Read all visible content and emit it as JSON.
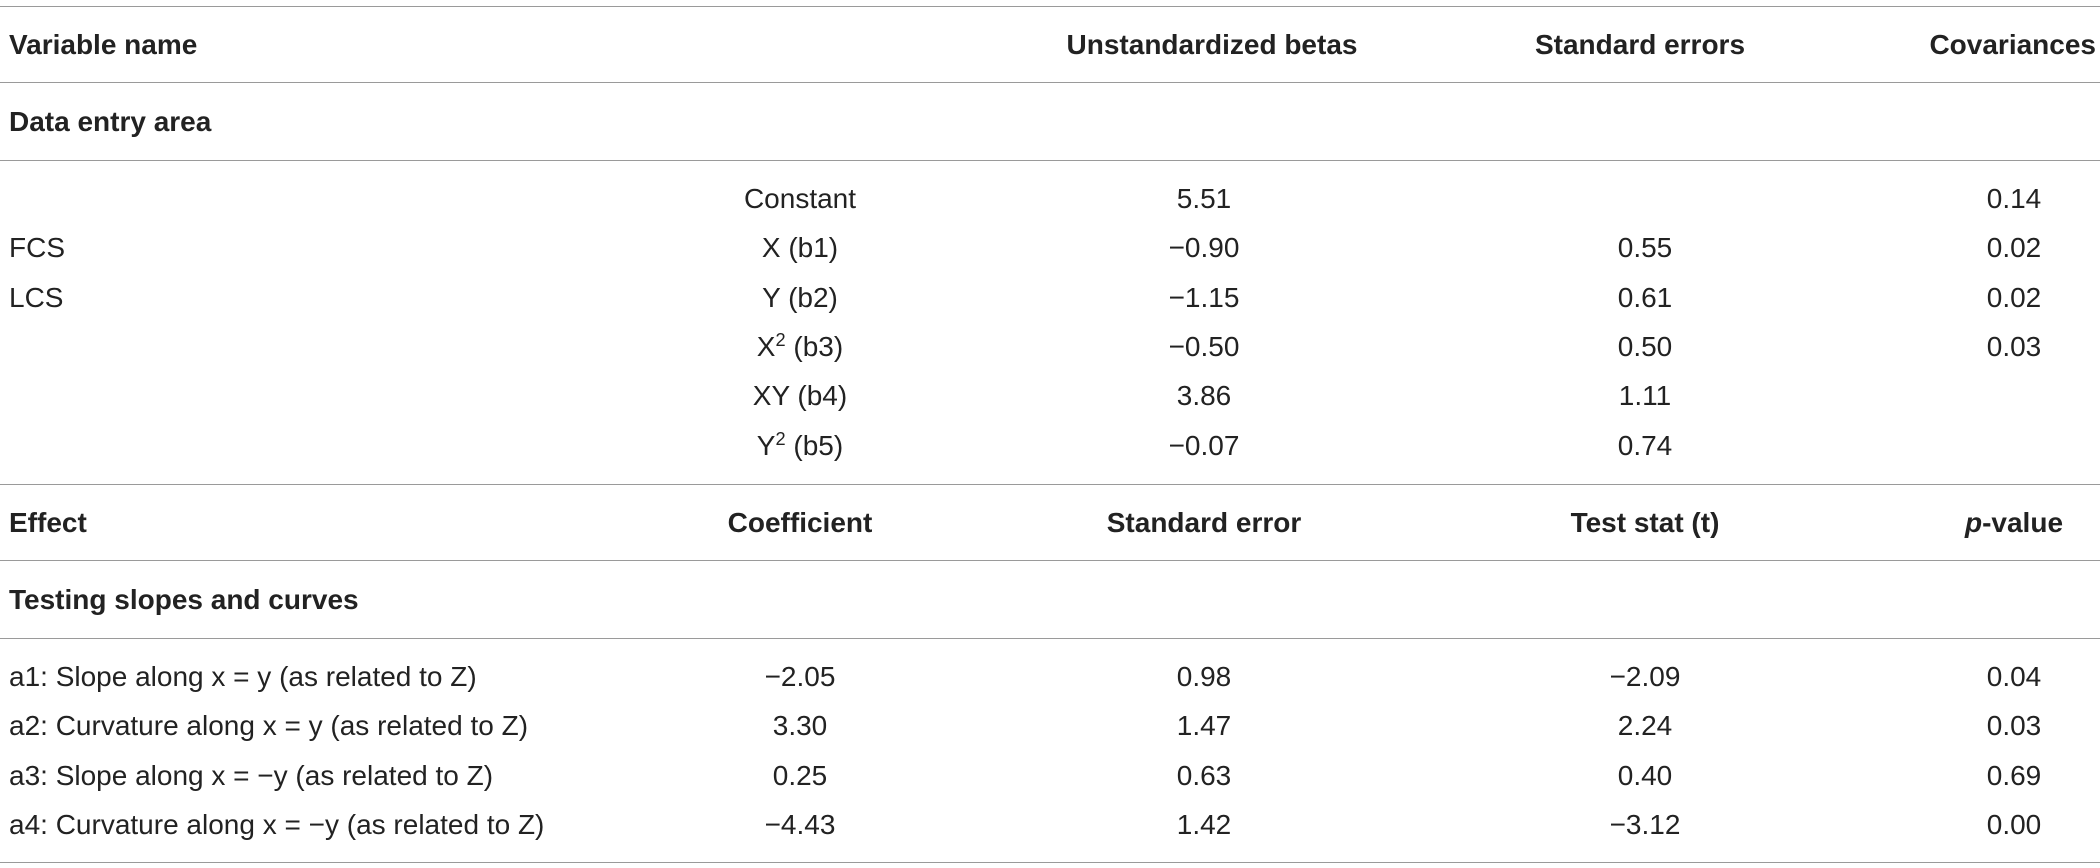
{
  "top_header": {
    "variable_name": "Variable name",
    "unstd_betas": "Unstandardized betas",
    "std_errors": "Standard errors",
    "covariances": "Covariances"
  },
  "section1": {
    "title": "Data entry area",
    "rows": [
      {
        "group": "",
        "term": "Constant",
        "term_sup": "",
        "term_suffix": "",
        "beta": "5.51",
        "se": "",
        "cov": "0.14"
      },
      {
        "group": "FCS",
        "term": "X (b1)",
        "term_sup": "",
        "term_suffix": "",
        "beta": "−0.90",
        "se": "0.55",
        "cov": "0.02"
      },
      {
        "group": "LCS",
        "term": "Y (b2)",
        "term_sup": "",
        "term_suffix": "",
        "beta": "−1.15",
        "se": "0.61",
        "cov": "0.02"
      },
      {
        "group": "",
        "term": "X",
        "term_sup": "2",
        "term_suffix": " (b3)",
        "beta": "−0.50",
        "se": "0.50",
        "cov": "0.03"
      },
      {
        "group": "",
        "term": "XY (b4)",
        "term_sup": "",
        "term_suffix": "",
        "beta": "3.86",
        "se": "1.11",
        "cov": ""
      },
      {
        "group": "",
        "term": "Y",
        "term_sup": "2",
        "term_suffix": " (b5)",
        "beta": "−0.07",
        "se": "0.74",
        "cov": ""
      }
    ]
  },
  "second_header": {
    "effect": "Effect",
    "coefficient": "Coefficient",
    "std_error": "Standard error",
    "test_stat": "Test stat (t)",
    "p_value_italic": "p",
    "p_value_rest": "-value"
  },
  "section2": {
    "title": "Testing slopes and curves",
    "rows": [
      {
        "effect": "a1: Slope along x = y (as related to Z)",
        "coef": "−2.05",
        "se": "0.98",
        "t": "−2.09",
        "p": "0.04"
      },
      {
        "effect": "a2: Curvature along x = y (as related to Z)",
        "coef": "3.30",
        "se": "1.47",
        "t": "2.24",
        "p": "0.03"
      },
      {
        "effect": "a3: Slope along x = −y (as related to Z)",
        "coef": "0.25",
        "se": "0.63",
        "t": "0.40",
        "p": "0.69"
      },
      {
        "effect": "a4: Curvature along x = −y (as related to Z)",
        "coef": "−4.43",
        "se": "1.42",
        "t": "−3.12",
        "p": "0.00"
      }
    ]
  }
}
